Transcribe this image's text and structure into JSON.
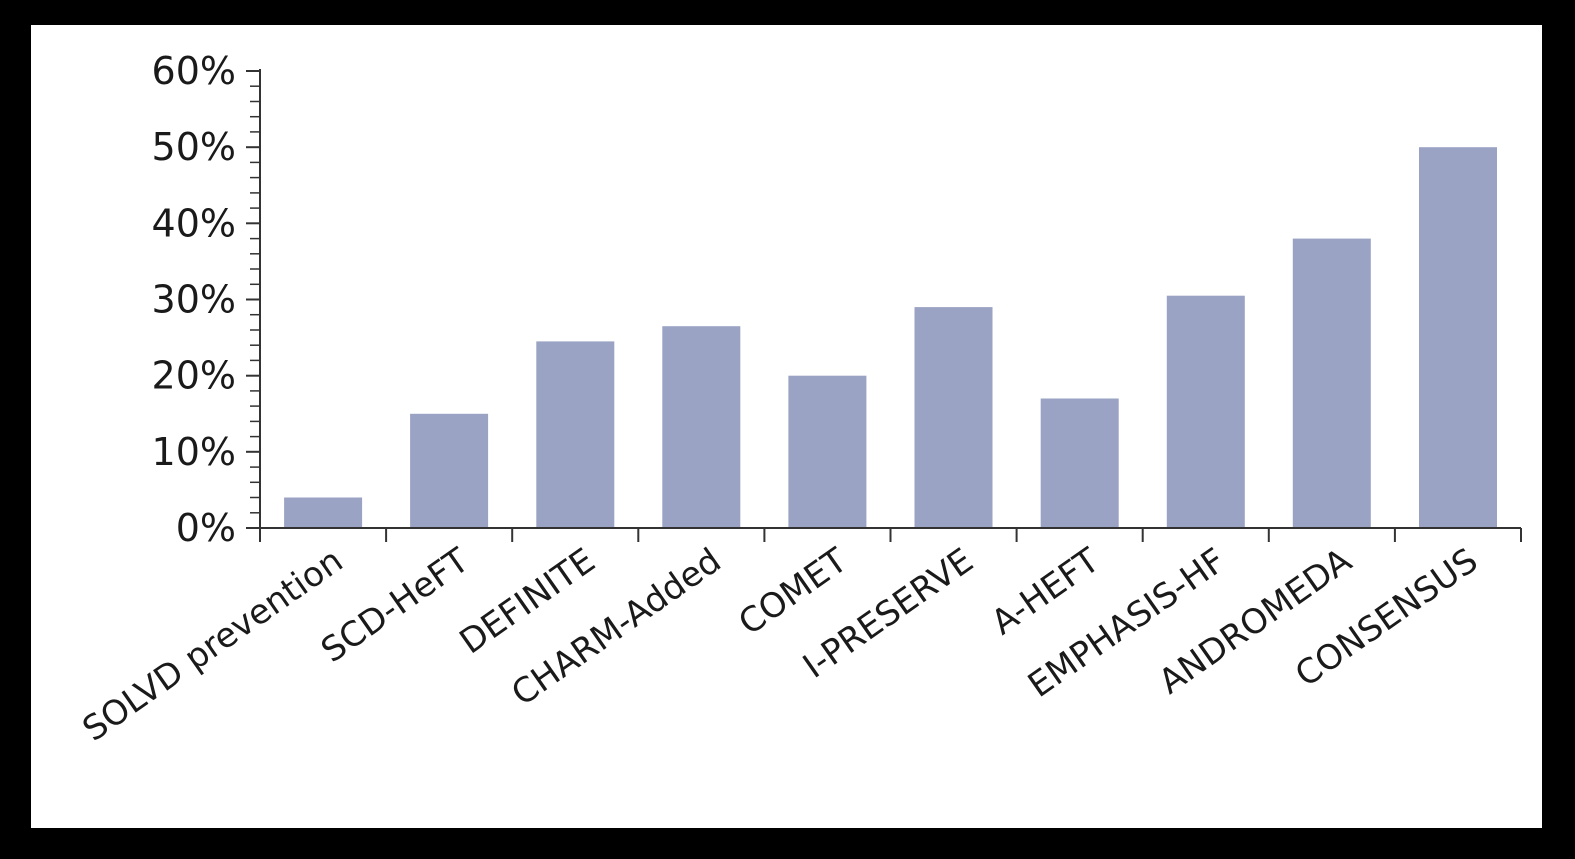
{
  "chart_data": {
    "type": "bar",
    "categories": [
      "SOLVD prevention",
      "SCD-HeFT",
      "DEFINITE",
      "CHARM-Added",
      "COMET",
      "I-PRESERVE",
      "A-HEFT",
      "EMPHASIS-HF",
      "ANDROMEDA",
      "CONSENSUS"
    ],
    "values": [
      4,
      15,
      24.5,
      26.5,
      20,
      29,
      17,
      30.5,
      38,
      50
    ],
    "title": "",
    "xlabel": "",
    "ylabel": "",
    "ylim": [
      0,
      60
    ],
    "yticks": [
      0,
      10,
      20,
      30,
      40,
      50,
      60
    ],
    "ytick_labels": [
      "0%",
      "10%",
      "20%",
      "30%",
      "40%",
      "50%",
      "60%"
    ],
    "grid": false,
    "legend": "none",
    "bar_color": "#9aa3c4"
  }
}
